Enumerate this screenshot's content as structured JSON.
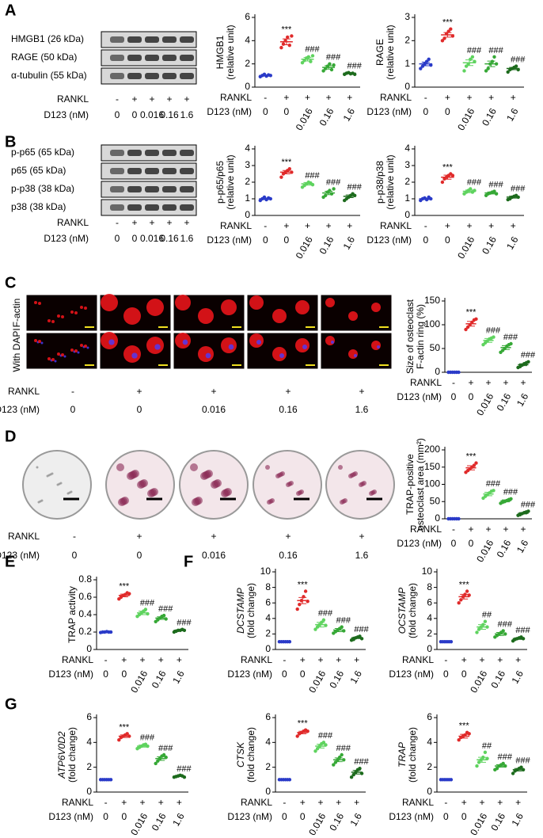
{
  "panels": [
    "A",
    "B",
    "C",
    "D",
    "E",
    "F",
    "G"
  ],
  "blots": {
    "A": [
      "HMGB1 (26 kDa)",
      "RAGE (50 kDa)",
      "α-tubulin (55 kDa)"
    ],
    "B": [
      "p-p65 (65 kDa)",
      "p65 (65 kDa)",
      "p-p38 (38 kDa)",
      "p38 (38 kDa)"
    ]
  },
  "images": {
    "f_actin": "F-actin",
    "with_dapi": "With DAPI"
  },
  "treatment": {
    "rankl_label": "RANKL",
    "rankl": [
      "-",
      "+",
      "+",
      "+",
      "+"
    ],
    "d123_label": "D123 (nM)",
    "d123": [
      "0",
      "0",
      "0.016",
      "0.16",
      "1.6"
    ]
  },
  "group_colors": [
    "#2a3bc8",
    "#e02a2a",
    "#5fd35f",
    "#36a836",
    "#1d6b1d"
  ],
  "chart_data": [
    {
      "type": "dot",
      "ylabel": [
        "HMGB1",
        "(relative unit)"
      ],
      "ylim": [
        0,
        6
      ],
      "yticks": [
        0,
        2,
        4,
        6
      ],
      "values": [
        1.0,
        3.9,
        2.4,
        1.7,
        1.2
      ],
      "errors": [
        0.05,
        0.25,
        0.15,
        0.15,
        0.05
      ],
      "points": [
        [
          0.9,
          1.0,
          1.1,
          0.95,
          1.05,
          1.0
        ],
        [
          3.4,
          3.7,
          4.0,
          4.3,
          3.6,
          4.4
        ],
        [
          2.1,
          2.3,
          2.5,
          2.6,
          2.2,
          2.7
        ],
        [
          1.4,
          1.6,
          1.8,
          2.0,
          1.5,
          1.9
        ],
        [
          1.1,
          1.2,
          1.25,
          1.15,
          1.2,
          1.1
        ]
      ],
      "annotations": [
        null,
        "***",
        "###",
        "###",
        "###"
      ]
    },
    {
      "type": "dot",
      "ylabel": [
        "RAGE",
        "(relative unit)"
      ],
      "ylim": [
        0,
        3
      ],
      "yticks": [
        0,
        1,
        2,
        3
      ],
      "values": [
        1.0,
        2.25,
        1.05,
        1.0,
        0.8
      ],
      "errors": [
        0.08,
        0.1,
        0.12,
        0.12,
        0.05
      ],
      "points": [
        [
          0.8,
          0.9,
          1.0,
          1.1,
          1.2,
          0.95
        ],
        [
          2.0,
          2.1,
          2.3,
          2.4,
          2.5,
          2.2
        ],
        [
          0.7,
          0.9,
          1.0,
          1.2,
          1.3,
          1.1
        ],
        [
          0.7,
          0.8,
          1.0,
          1.1,
          1.3,
          1.0
        ],
        [
          0.65,
          0.75,
          0.8,
          0.85,
          0.9,
          0.75
        ]
      ],
      "annotations": [
        null,
        "***",
        "###",
        "###",
        "###"
      ]
    },
    {
      "type": "dot",
      "ylabel": [
        "p-p65/p65",
        "(relative unit)"
      ],
      "ylim": [
        0,
        4
      ],
      "yticks": [
        0,
        1,
        2,
        3,
        4
      ],
      "values": [
        1.0,
        2.6,
        1.9,
        1.35,
        1.15
      ],
      "errors": [
        0.05,
        0.1,
        0.08,
        0.1,
        0.08
      ],
      "points": [
        [
          0.9,
          1.0,
          1.1,
          0.95,
          1.05,
          1.0
        ],
        [
          2.3,
          2.5,
          2.6,
          2.7,
          2.8,
          2.6
        ],
        [
          1.7,
          1.8,
          1.9,
          2.0,
          1.95,
          1.85
        ],
        [
          1.1,
          1.2,
          1.4,
          1.5,
          1.3,
          1.6
        ],
        [
          0.9,
          1.0,
          1.1,
          1.2,
          1.3,
          1.2
        ]
      ],
      "annotations": [
        null,
        "***",
        "###",
        "###",
        "###"
      ]
    },
    {
      "type": "dot",
      "ylabel": [
        "p-p38/p38",
        "(relative unit)"
      ],
      "ylim": [
        0,
        4
      ],
      "yticks": [
        0,
        1,
        2,
        3,
        4
      ],
      "values": [
        1.0,
        2.3,
        1.45,
        1.35,
        1.1
      ],
      "errors": [
        0.05,
        0.12,
        0.08,
        0.06,
        0.06
      ],
      "points": [
        [
          0.9,
          1.0,
          1.05,
          0.95,
          1.1,
          1.0
        ],
        [
          2.0,
          2.2,
          2.3,
          2.4,
          2.5,
          2.4
        ],
        [
          1.3,
          1.4,
          1.5,
          1.6,
          1.4,
          1.5
        ],
        [
          1.2,
          1.3,
          1.35,
          1.4,
          1.45,
          1.3
        ],
        [
          0.95,
          1.0,
          1.1,
          1.15,
          1.2,
          1.1
        ]
      ],
      "annotations": [
        null,
        "***",
        "###",
        "###",
        "###"
      ]
    },
    {
      "type": "dot",
      "ylabel": [
        "Size of osteoclast",
        "F-actin ring (%)"
      ],
      "ylim": [
        0,
        150
      ],
      "yticks": [
        0,
        50,
        100,
        150
      ],
      "values": [
        0,
        102,
        67,
        52,
        16
      ],
      "errors": [
        0,
        5,
        4,
        4,
        2
      ],
      "points": [
        [
          0,
          0,
          0,
          0,
          0,
          0
        ],
        [
          90,
          95,
          100,
          105,
          110,
          112
        ],
        [
          58,
          62,
          66,
          70,
          72,
          74
        ],
        [
          42,
          46,
          50,
          55,
          58,
          60
        ],
        [
          10,
          12,
          15,
          18,
          20,
          22
        ]
      ],
      "annotations": [
        null,
        "***",
        "###",
        "###",
        "###"
      ]
    },
    {
      "type": "dot",
      "ylabel": [
        "TRAP-positive",
        "osteoclast area (mm²)"
      ],
      "ylim": [
        0,
        200
      ],
      "yticks": [
        0,
        50,
        100,
        150,
        200
      ],
      "values": [
        0,
        148,
        72,
        52,
        16
      ],
      "errors": [
        0,
        6,
        5,
        3,
        2
      ],
      "points": [
        [
          0,
          0,
          0,
          0,
          0,
          0
        ],
        [
          135,
          140,
          145,
          150,
          155,
          162
        ],
        [
          60,
          65,
          70,
          75,
          80,
          82
        ],
        [
          45,
          48,
          50,
          53,
          56,
          58
        ],
        [
          10,
          12,
          15,
          18,
          20,
          22
        ]
      ],
      "annotations": [
        null,
        "***",
        "###",
        "###",
        "###"
      ]
    },
    {
      "type": "dot",
      "ylabel": [
        "TRAP activity"
      ],
      "ylim": [
        0,
        0.8
      ],
      "yticks": [
        0,
        0.2,
        0.4,
        0.6,
        0.8
      ],
      "values": [
        0.2,
        0.62,
        0.42,
        0.36,
        0.22
      ],
      "errors": [
        0.005,
        0.015,
        0.02,
        0.015,
        0.005
      ],
      "points": [
        [
          0.195,
          0.2,
          0.2,
          0.205,
          0.2,
          0.2
        ],
        [
          0.58,
          0.6,
          0.62,
          0.63,
          0.65,
          0.64
        ],
        [
          0.38,
          0.4,
          0.42,
          0.44,
          0.46,
          0.41
        ],
        [
          0.32,
          0.34,
          0.36,
          0.38,
          0.39,
          0.35
        ],
        [
          0.2,
          0.21,
          0.22,
          0.22,
          0.23,
          0.22
        ]
      ],
      "annotations": [
        null,
        "***",
        "###",
        "###",
        "###"
      ]
    },
    {
      "type": "dot",
      "ylabel": [
        "DCSTAMP",
        "(fold change)"
      ],
      "ylabel_italic": true,
      "ylim": [
        0,
        10
      ],
      "yticks": [
        0,
        2,
        4,
        6,
        8,
        10
      ],
      "values": [
        1,
        6.3,
        3.2,
        2.5,
        1.5
      ],
      "errors": [
        0,
        0.4,
        0.3,
        0.2,
        0.1
      ],
      "points": [
        [
          1,
          1,
          1,
          1,
          1,
          1
        ],
        [
          5.2,
          5.8,
          6.3,
          6.8,
          7.5,
          6.2
        ],
        [
          2.6,
          2.9,
          3.2,
          3.5,
          3.8,
          3.1
        ],
        [
          2.1,
          2.3,
          2.5,
          2.7,
          2.9,
          2.4
        ],
        [
          1.2,
          1.3,
          1.5,
          1.6,
          1.7,
          1.4
        ]
      ],
      "annotations": [
        null,
        "***",
        "###",
        "###",
        "###"
      ]
    },
    {
      "type": "dot",
      "ylabel": [
        "OCSTAMP",
        "(fold change)"
      ],
      "ylabel_italic": true,
      "ylim": [
        0,
        10
      ],
      "yticks": [
        0,
        2,
        4,
        6,
        8,
        10
      ],
      "values": [
        1,
        6.8,
        2.9,
        2.0,
        1.4
      ],
      "errors": [
        0,
        0.3,
        0.3,
        0.2,
        0.1
      ],
      "points": [
        [
          1,
          1,
          1,
          1,
          1,
          1
        ],
        [
          6.0,
          6.4,
          6.8,
          7.1,
          7.5,
          7.0
        ],
        [
          2.2,
          2.6,
          2.9,
          3.2,
          3.6,
          2.9
        ],
        [
          1.6,
          1.8,
          2.0,
          2.2,
          2.4,
          2.0
        ],
        [
          1.1,
          1.3,
          1.4,
          1.5,
          1.6,
          1.4
        ]
      ],
      "annotations": [
        null,
        "***",
        "##",
        "###",
        "###"
      ]
    },
    {
      "type": "dot",
      "ylabel": [
        "ATP6V0D2",
        "(fold change)"
      ],
      "ylabel_italic": true,
      "ylim": [
        0,
        6
      ],
      "yticks": [
        0,
        2,
        4,
        6
      ],
      "values": [
        1,
        4.5,
        3.7,
        2.7,
        1.3
      ],
      "errors": [
        0,
        0.1,
        0.08,
        0.15,
        0.05
      ],
      "points": [
        [
          1,
          1,
          1,
          1,
          1,
          1
        ],
        [
          4.2,
          4.4,
          4.5,
          4.6,
          4.7,
          4.5
        ],
        [
          3.5,
          3.6,
          3.7,
          3.8,
          3.85,
          3.7
        ],
        [
          2.3,
          2.5,
          2.7,
          2.9,
          3.0,
          2.8
        ],
        [
          1.2,
          1.25,
          1.3,
          1.35,
          1.3,
          1.2
        ]
      ],
      "annotations": [
        null,
        "***",
        "###",
        "###",
        "###"
      ]
    },
    {
      "type": "dot",
      "ylabel": [
        "CTSK",
        "(fold change)"
      ],
      "ylabel_italic": true,
      "ylim": [
        0,
        6
      ],
      "yticks": [
        0,
        2,
        4,
        6
      ],
      "values": [
        1,
        4.8,
        3.7,
        2.6,
        1.6
      ],
      "errors": [
        0,
        0.1,
        0.15,
        0.15,
        0.15
      ],
      "points": [
        [
          1,
          1,
          1,
          1,
          1,
          1
        ],
        [
          4.5,
          4.7,
          4.8,
          4.9,
          5.0,
          4.9
        ],
        [
          3.3,
          3.5,
          3.7,
          3.9,
          4.0,
          3.8
        ],
        [
          2.2,
          2.4,
          2.6,
          2.8,
          3.0,
          2.6
        ],
        [
          1.2,
          1.4,
          1.6,
          1.8,
          1.9,
          1.5
        ]
      ],
      "annotations": [
        null,
        "***",
        "###",
        "###",
        "###"
      ]
    },
    {
      "type": "dot",
      "ylabel": [
        "TRAP",
        "(fold change)"
      ],
      "ylabel_italic": true,
      "ylim": [
        0,
        6
      ],
      "yticks": [
        0,
        2,
        4,
        6
      ],
      "values": [
        1,
        4.5,
        2.6,
        2.1,
        1.8
      ],
      "errors": [
        0,
        0.15,
        0.2,
        0.1,
        0.1
      ],
      "points": [
        [
          1,
          1,
          1,
          1,
          1,
          1
        ],
        [
          4.2,
          4.4,
          4.5,
          4.6,
          4.8,
          4.7
        ],
        [
          2.1,
          2.4,
          2.6,
          2.8,
          3.2,
          2.7
        ],
        [
          1.8,
          1.9,
          2.1,
          2.2,
          2.3,
          2.1
        ],
        [
          1.5,
          1.7,
          1.8,
          1.9,
          2.0,
          1.8
        ]
      ],
      "annotations": [
        null,
        "***",
        "##",
        "###",
        "###"
      ]
    }
  ]
}
